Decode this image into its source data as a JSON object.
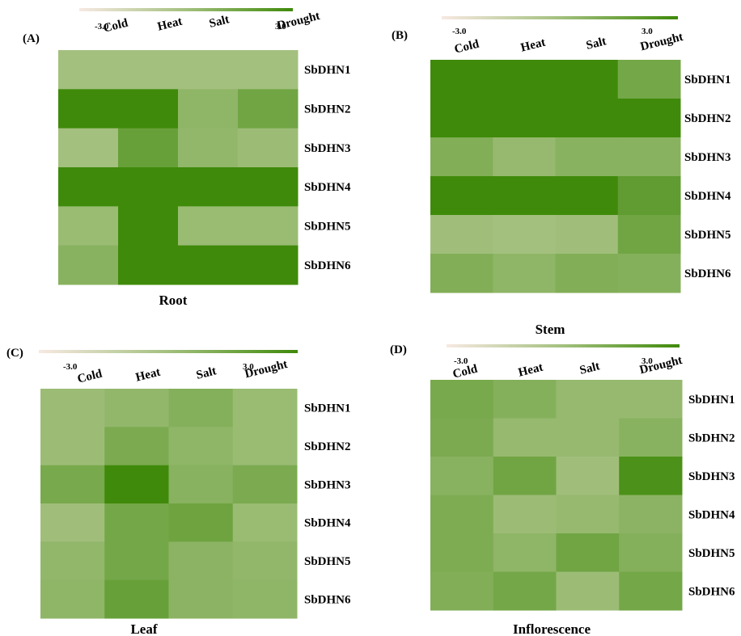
{
  "colors": {
    "low": "#f7e9e2",
    "mid": "#a3c07e",
    "high": "#3f8a0a"
  },
  "chart_data": [
    {
      "type": "heatmap",
      "panel": "(A)",
      "title": "Root",
      "scale_min_label": "-3.0",
      "scale_max_label": "3.0",
      "value_range": [
        -3.0,
        3.0
      ],
      "columns": [
        "Cold",
        "Heat",
        "Salt",
        "Drought"
      ],
      "rows": [
        "SbDHN1",
        "SbDHN2",
        "SbDHN3",
        "SbDHN4",
        "SbDHN5",
        "SbDHN6"
      ],
      "values": [
        [
          0.0,
          0.0,
          0.0,
          0.0
        ],
        [
          3.0,
          3.0,
          0.6,
          1.5
        ],
        [
          0.0,
          1.8,
          0.5,
          0.2
        ],
        [
          3.0,
          3.0,
          3.0,
          3.0
        ],
        [
          0.3,
          3.0,
          0.3,
          0.3
        ],
        [
          0.8,
          3.0,
          3.0,
          3.0
        ]
      ]
    },
    {
      "type": "heatmap",
      "panel": "(B)",
      "title": "Stem",
      "scale_min_label": "-3.0",
      "scale_max_label": "3.0",
      "value_range": [
        -3.0,
        3.0
      ],
      "columns": [
        "Cold",
        "Heat",
        "Salt",
        "Drought"
      ],
      "rows": [
        "SbDHN1",
        "SbDHN2",
        "SbDHN3",
        "SbDHN4",
        "SbDHN5",
        "SbDHN6"
      ],
      "values": [
        [
          3.0,
          3.0,
          3.0,
          1.4
        ],
        [
          3.0,
          3.0,
          3.0,
          3.0
        ],
        [
          1.0,
          0.4,
          0.8,
          0.8
        ],
        [
          3.0,
          3.0,
          3.0,
          2.0
        ],
        [
          0.1,
          0.0,
          0.1,
          1.5
        ],
        [
          1.0,
          0.6,
          1.0,
          0.9
        ]
      ]
    },
    {
      "type": "heatmap",
      "panel": "(C)",
      "title": "Leaf",
      "scale_min_label": "-3.0",
      "scale_max_label": "3.0",
      "value_range": [
        -3.0,
        3.0
      ],
      "columns": [
        "Cold",
        "Heat",
        "Salt",
        "Drought"
      ],
      "rows": [
        "SbDHN1",
        "SbDHN2",
        "SbDHN3",
        "SbDHN4",
        "SbDHN5",
        "SbDHN6"
      ],
      "values": [
        [
          0.2,
          0.5,
          0.9,
          0.3
        ],
        [
          0.2,
          1.2,
          0.6,
          0.3
        ],
        [
          1.3,
          3.0,
          0.8,
          1.2
        ],
        [
          0.1,
          1.4,
          1.6,
          0.3
        ],
        [
          0.5,
          1.4,
          0.7,
          0.5
        ],
        [
          0.6,
          1.8,
          0.7,
          0.6
        ]
      ]
    },
    {
      "type": "heatmap",
      "panel": "(D)",
      "title": "Inflorescence",
      "scale_min_label": "-3.0",
      "scale_max_label": "3.0",
      "value_range": [
        -3.0,
        3.0
      ],
      "columns": [
        "Cold",
        "Heat",
        "Salt",
        "Drought"
      ],
      "rows": [
        "SbDHN1",
        "SbDHN2",
        "SbDHN3",
        "SbDHN4",
        "SbDHN5",
        "SbDHN6"
      ],
      "values": [
        [
          1.3,
          0.9,
          0.4,
          0.4
        ],
        [
          1.2,
          0.4,
          0.4,
          0.8
        ],
        [
          0.8,
          1.5,
          0.1,
          2.6
        ],
        [
          1.1,
          0.2,
          0.4,
          0.7
        ],
        [
          1.1,
          0.6,
          1.5,
          0.9
        ],
        [
          1.0,
          1.4,
          0.2,
          1.4
        ]
      ]
    }
  ]
}
